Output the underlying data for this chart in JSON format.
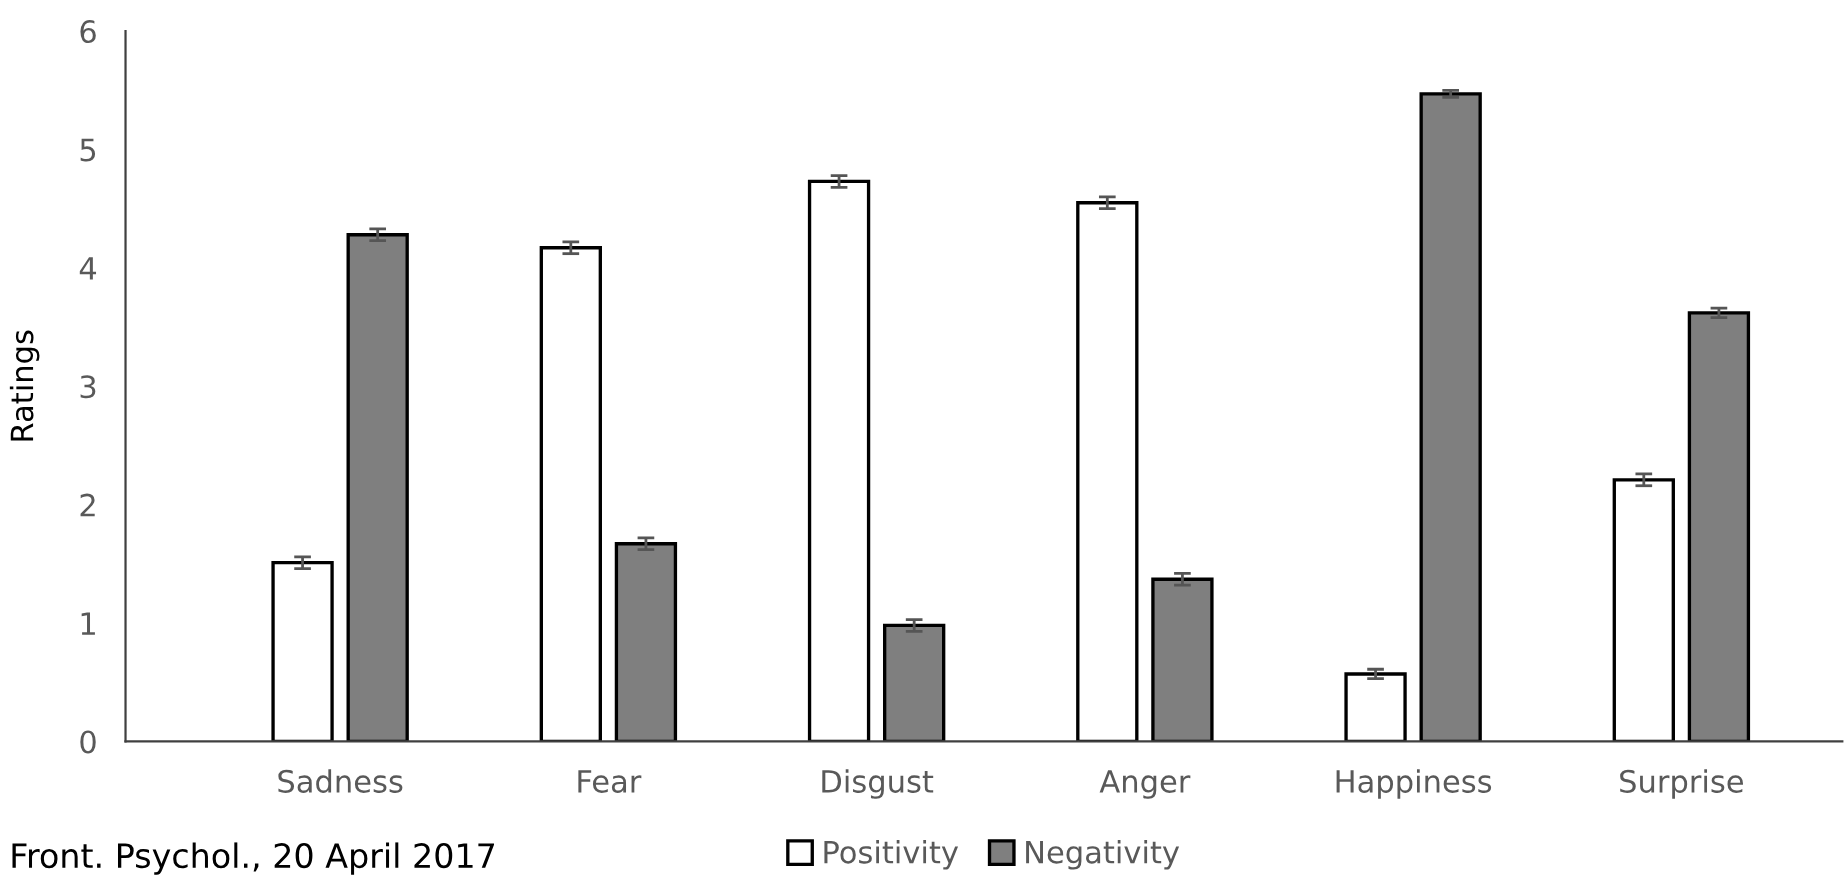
{
  "chart_data": {
    "type": "bar",
    "ylabel": "Ratings",
    "categories": [
      "Sadness",
      "Fear",
      "Disgust",
      "Anger",
      "Happiness",
      "Surprise"
    ],
    "series": [
      {
        "name": "Positivity",
        "color": "#ffffff",
        "values": [
          1.51,
          4.17,
          4.73,
          4.55,
          0.57,
          2.21
        ],
        "errors": [
          0.05,
          0.05,
          0.05,
          0.05,
          0.04,
          0.05
        ]
      },
      {
        "name": "Negativity",
        "color": "#7f7f7f",
        "values": [
          4.28,
          1.67,
          0.98,
          1.37,
          5.47,
          3.62
        ],
        "errors": [
          0.05,
          0.05,
          0.05,
          0.05,
          0.03,
          0.04
        ]
      }
    ],
    "ylim": [
      0,
      6
    ],
    "yticks": [
      0,
      1,
      2,
      3,
      4,
      5,
      6
    ],
    "grid": false,
    "legend": "bottom",
    "annotations": [
      "Front. Psychol., 20 April 2017"
    ]
  }
}
